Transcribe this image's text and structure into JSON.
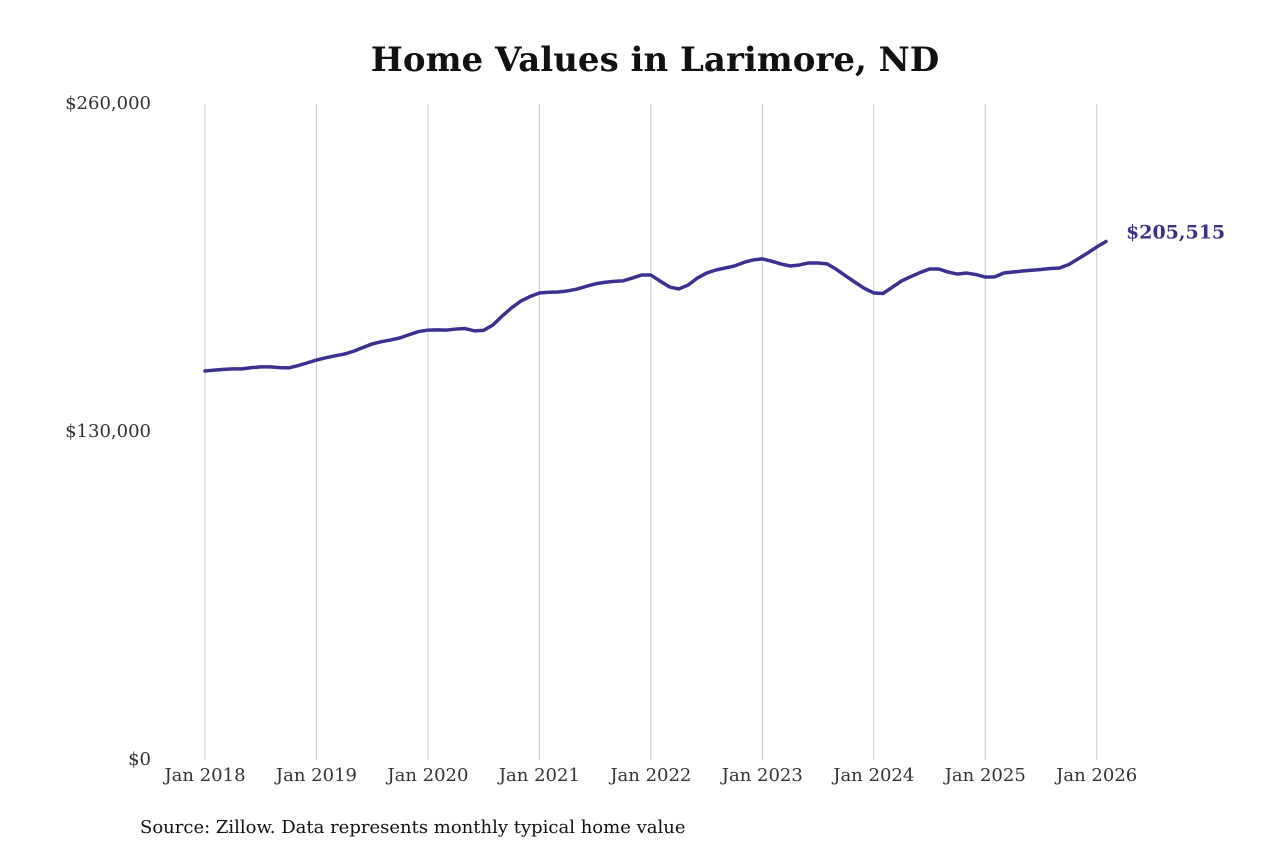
{
  "chart_data": {
    "type": "line",
    "title": "Home Values in Larimore, ND",
    "source": "Source: Zillow. Data represents monthly typical home value",
    "x": [
      "2018-01",
      "2018-02",
      "2018-03",
      "2018-04",
      "2018-05",
      "2018-06",
      "2018-07",
      "2018-08",
      "2018-09",
      "2018-10",
      "2018-11",
      "2018-12",
      "2019-01",
      "2019-02",
      "2019-03",
      "2019-04",
      "2019-05",
      "2019-06",
      "2019-07",
      "2019-08",
      "2019-09",
      "2019-10",
      "2019-11",
      "2019-12",
      "2020-01",
      "2020-02",
      "2020-03",
      "2020-04",
      "2020-05",
      "2020-06",
      "2020-07",
      "2020-08",
      "2020-09",
      "2020-10",
      "2020-11",
      "2020-12",
      "2021-01",
      "2021-02",
      "2021-03",
      "2021-04",
      "2021-05",
      "2021-06",
      "2021-07",
      "2021-08",
      "2021-09",
      "2021-10",
      "2021-11",
      "2021-12",
      "2022-01",
      "2022-02",
      "2022-03",
      "2022-04",
      "2022-05",
      "2022-06",
      "2022-07",
      "2022-08",
      "2022-09",
      "2022-10",
      "2022-11",
      "2022-12",
      "2023-01",
      "2023-02",
      "2023-03",
      "2023-04",
      "2023-05",
      "2023-06",
      "2023-07",
      "2023-08",
      "2023-09",
      "2023-10",
      "2023-11",
      "2023-12",
      "2024-01",
      "2024-02",
      "2024-03",
      "2024-04",
      "2024-05",
      "2024-06",
      "2024-07",
      "2024-08",
      "2024-09",
      "2024-10",
      "2024-11",
      "2024-12",
      "2025-01",
      "2025-02",
      "2025-03",
      "2025-04",
      "2025-05",
      "2025-06",
      "2025-07",
      "2025-08",
      "2025-09",
      "2025-10",
      "2025-11",
      "2025-12",
      "2026-01",
      "2026-02"
    ],
    "series": [
      {
        "color": "#3b3190",
        "values": [
          154200,
          154500,
          154800,
          155000,
          155000,
          155500,
          155800,
          155800,
          155500,
          155400,
          156300,
          157400,
          158500,
          159400,
          160200,
          160900,
          162000,
          163500,
          164900,
          165800,
          166500,
          167300,
          168600,
          169800,
          170400,
          170500,
          170400,
          170800,
          171000,
          170100,
          170300,
          172400,
          176000,
          179200,
          181900,
          183700,
          185100,
          185400,
          185500,
          185900,
          186600,
          187700,
          188700,
          189300,
          189700,
          189900,
          191000,
          192200,
          192200,
          189800,
          187500,
          186700,
          188200,
          191000,
          193000,
          194200,
          195000,
          195800,
          197200,
          198200,
          198600,
          197700,
          196600,
          195800,
          196200,
          197000,
          197000,
          196600,
          194400,
          191800,
          189300,
          186900,
          185100,
          184900,
          187400,
          189900,
          191600,
          193200,
          194600,
          194600,
          193400,
          192600,
          193000,
          192400,
          191400,
          191500,
          193000,
          193400,
          193800,
          194100,
          194400,
          194800,
          195000,
          196400,
          198600,
          200900,
          203300,
          205515
        ],
        "value_labels": [
          null,
          null,
          null,
          null,
          null,
          null,
          null,
          null,
          null,
          null,
          null,
          null,
          null,
          null,
          null,
          null,
          null,
          null,
          null,
          null,
          null,
          null,
          null,
          null,
          null,
          null,
          null,
          null,
          null,
          null,
          null,
          null,
          null,
          null,
          null,
          null,
          null,
          null,
          null,
          null,
          null,
          null,
          null,
          null,
          null,
          null,
          null,
          null,
          null,
          null,
          null,
          null,
          null,
          null,
          null,
          null,
          null,
          null,
          null,
          null,
          null,
          null,
          null,
          null,
          null,
          null,
          null,
          null,
          null,
          null,
          null,
          null,
          null,
          null,
          null,
          null,
          null,
          null,
          null,
          null,
          null,
          null,
          null,
          null,
          null,
          null,
          null,
          null,
          null,
          null,
          null,
          null,
          null,
          null,
          null,
          null,
          null,
          "$205,515"
        ]
      }
    ],
    "xlim": [
      "2018-01",
      "2026-02"
    ],
    "xticks": [
      {
        "value": "2018-01",
        "label": "Jan 2018"
      },
      {
        "value": "2019-01",
        "label": "Jan 2019"
      },
      {
        "value": "2020-01",
        "label": "Jan 2020"
      },
      {
        "value": "2021-01",
        "label": "Jan 2021"
      },
      {
        "value": "2022-01",
        "label": "Jan 2022"
      },
      {
        "value": "2023-01",
        "label": "Jan 2023"
      },
      {
        "value": "2024-01",
        "label": "Jan 2024"
      },
      {
        "value": "2025-01",
        "label": "Jan 2025"
      },
      {
        "value": "2026-01",
        "label": "Jan 2026"
      }
    ],
    "ylim": [
      0,
      260000
    ],
    "yticks": [
      {
        "value": 0,
        "label": "$0"
      },
      {
        "value": 130000,
        "label": "$130,000"
      },
      {
        "value": 260000,
        "label": "$260,000"
      }
    ],
    "grid": "x"
  }
}
